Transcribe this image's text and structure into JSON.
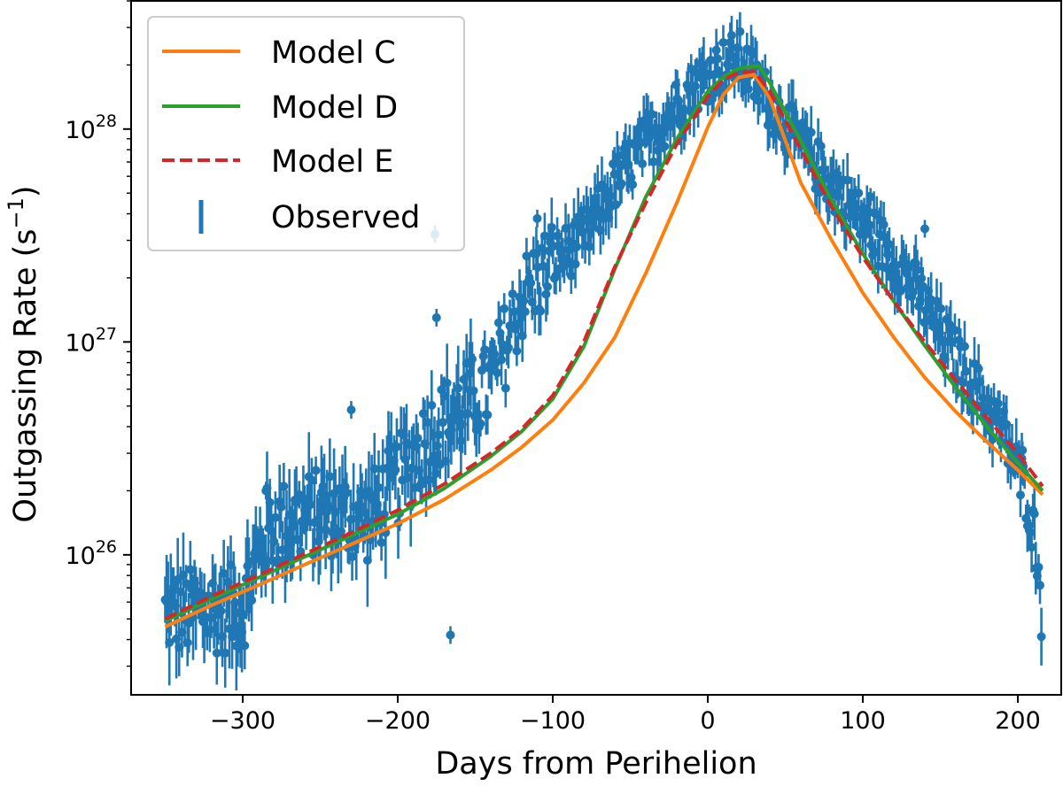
{
  "chart_data": {
    "type": "scatter",
    "title": "",
    "xlabel": "Days from Perihelion",
    "ylabel_base": "Outgassing Rate (s",
    "ylabel_exp": "−1",
    "ylabel_close": ")",
    "xlim": [
      -372,
      228
    ],
    "ylim": [
      2.2e+25,
      4e+28
    ],
    "yscale": "log",
    "grid": false,
    "legend_position": "top-left",
    "x_ticks": [
      {
        "value": -300,
        "label": "−300"
      },
      {
        "value": -200,
        "label": "−200"
      },
      {
        "value": -100,
        "label": "−100"
      },
      {
        "value": 0,
        "label": "0"
      },
      {
        "value": 100,
        "label": "100"
      },
      {
        "value": 200,
        "label": "200"
      }
    ],
    "y_ticks": [
      {
        "value": 1e+26,
        "base": "10",
        "exp": "26"
      },
      {
        "value": 1e+27,
        "base": "10",
        "exp": "27"
      },
      {
        "value": 1e+28,
        "base": "10",
        "exp": "28"
      }
    ],
    "series": [
      {
        "name": "Model C",
        "color": "#ff7f0e",
        "style": "solid",
        "x": [
          -350,
          -320,
          -290,
          -260,
          -230,
          -200,
          -170,
          -140,
          -120,
          -100,
          -80,
          -60,
          -40,
          -20,
          0,
          10,
          20,
          30,
          40,
          60,
          80,
          100,
          120,
          140,
          160,
          180,
          200,
          216
        ],
        "y": [
          4.6e+25,
          5.8e+25,
          7.2e+25,
          9e+25,
          1.12e+26,
          1.4e+26,
          1.82e+26,
          2.5e+26,
          3.2e+26,
          4.3e+26,
          6.4e+26,
          1.05e+27,
          2.1e+27,
          4.5e+27,
          1.02e+28,
          1.45e+28,
          1.75e+28,
          1.8e+28,
          1.4e+28,
          5.6e+27,
          3e+27,
          1.7e+27,
          1.05e+27,
          6.8e+26,
          4.7e+26,
          3.4e+26,
          2.5e+26,
          1.92e+26
        ]
      },
      {
        "name": "Model D",
        "color": "#2ca02c",
        "style": "solid",
        "x": [
          -350,
          -320,
          -290,
          -260,
          -230,
          -200,
          -170,
          -140,
          -120,
          -100,
          -80,
          -60,
          -40,
          -20,
          0,
          10,
          20,
          33,
          40,
          60,
          80,
          100,
          120,
          140,
          160,
          180,
          200,
          216
        ],
        "y": [
          4.9e+25,
          6.2e+25,
          7.8e+25,
          9.8e+25,
          1.23e+26,
          1.55e+26,
          2.05e+26,
          2.9e+26,
          3.8e+26,
          5.4e+26,
          9.5e+26,
          2.2e+27,
          4.8e+27,
          9e+27,
          1.5e+28,
          1.75e+28,
          1.93e+28,
          1.98e+28,
          1.65e+28,
          8.8e+27,
          4.6e+27,
          2.6e+27,
          1.55e+27,
          9.6e+26,
          6.1e+26,
          4e+26,
          2.7e+26,
          2e+26
        ]
      },
      {
        "name": "Model E",
        "color": "#d62728",
        "style": "dashed",
        "x": [
          -350,
          -320,
          -290,
          -260,
          -230,
          -200,
          -170,
          -140,
          -120,
          -100,
          -80,
          -60,
          -40,
          -20,
          0,
          10,
          20,
          30,
          40,
          60,
          80,
          100,
          120,
          140,
          160,
          180,
          200,
          216
        ],
        "y": [
          5e+25,
          6.4e+25,
          8e+25,
          1.01e+26,
          1.27e+26,
          1.62e+26,
          2.15e+26,
          3e+26,
          3.9e+26,
          5.6e+26,
          1e+27,
          2.25e+27,
          4.5e+27,
          8.5e+27,
          1.42e+28,
          1.7e+28,
          1.85e+28,
          1.87e+28,
          1.5e+28,
          8e+27,
          4.3e+27,
          2.5e+27,
          1.55e+27,
          1e+27,
          6.6e+26,
          4.4e+26,
          3e+26,
          2.1e+26
        ]
      },
      {
        "name": "Observed",
        "color": "#1f77b4",
        "style": "errorbar",
        "marker": "circle",
        "scatter": true
      }
    ]
  }
}
